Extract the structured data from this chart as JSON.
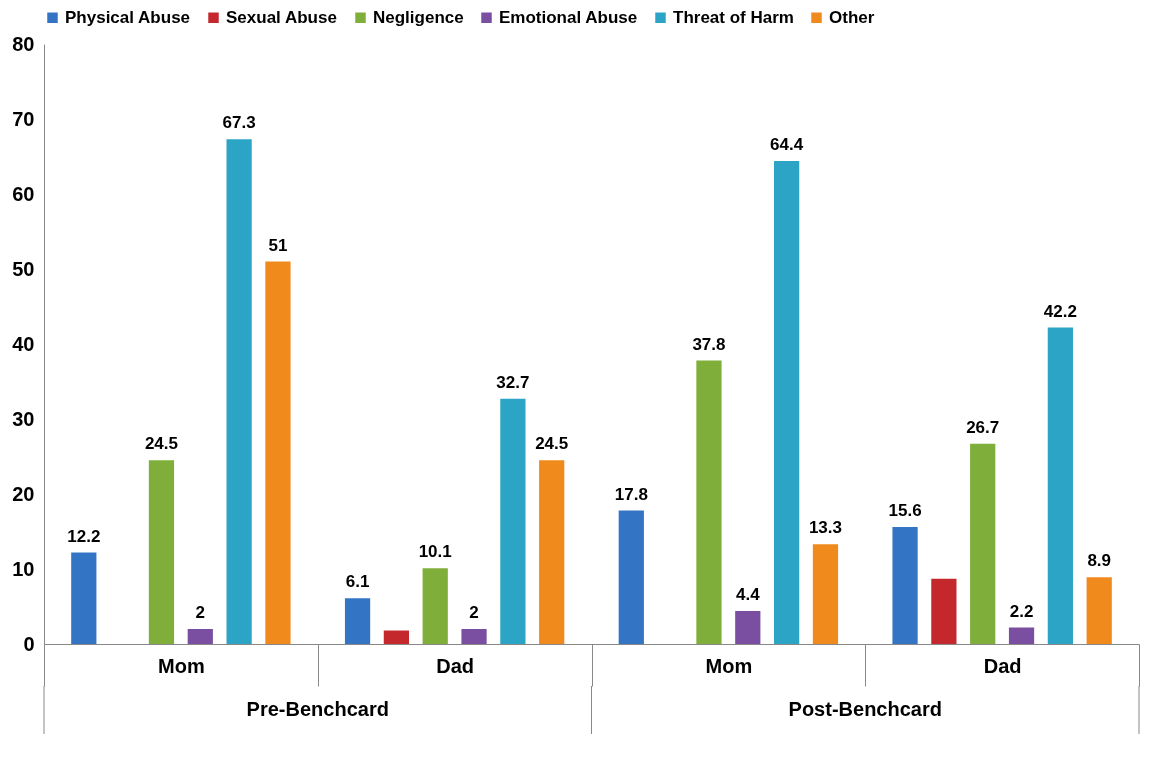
{
  "chart_data": {
    "type": "bar",
    "categories": [
      "Mom",
      "Dad",
      "Mom",
      "Dad"
    ],
    "ylim": [
      0,
      80
    ],
    "yticks": [
      0,
      10,
      20,
      30,
      40,
      50,
      60,
      70,
      80
    ],
    "grid": false,
    "legend": "top",
    "annotations": [
      "Pre-Benchcard",
      "Post-Benchcard"
    ],
    "series": [
      {
        "name": "Physical Abuse",
        "color": "#3474c4",
        "values": [
          12.2,
          6.1,
          17.8,
          15.6
        ],
        "value_labels": [
          "12.2",
          "6.1",
          "17.8",
          "15.6"
        ]
      },
      {
        "name": "Sexual Abuse",
        "color": "#c4282d",
        "values": [
          null,
          1.8,
          null,
          8.7
        ],
        "value_labels": [
          null,
          null,
          null,
          null
        ]
      },
      {
        "name": "Negligence",
        "color": "#7fae3a",
        "values": [
          24.5,
          10.1,
          37.8,
          26.7
        ],
        "value_labels": [
          "24.5",
          "10.1",
          "37.8",
          "26.7"
        ]
      },
      {
        "name": "Emotional Abuse",
        "color": "#7a4fa2",
        "values": [
          2,
          2,
          4.4,
          2.2
        ],
        "value_labels": [
          "2",
          "2",
          "4.4",
          "2.2"
        ]
      },
      {
        "name": "Threat of Harm",
        "color": "#2ca4c6",
        "values": [
          67.3,
          32.7,
          64.4,
          42.2
        ],
        "value_labels": [
          "67.3",
          "32.7",
          "64.4",
          "42.2"
        ]
      },
      {
        "name": "Other",
        "color": "#f08a1d",
        "values": [
          51,
          24.5,
          13.3,
          8.9
        ],
        "value_labels": [
          "51",
          "24.5",
          "13.3",
          "8.9"
        ]
      }
    ]
  }
}
